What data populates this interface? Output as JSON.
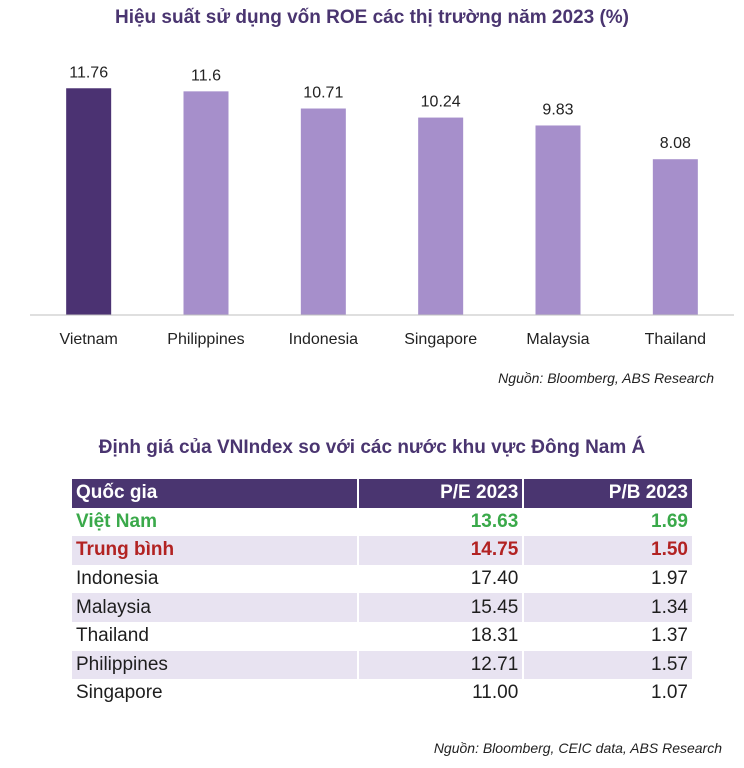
{
  "chart_data": {
    "type": "bar",
    "title": "Hiệu suất sử dụng vốn ROE các thị trường năm 2023 (%)",
    "categories": [
      "Vietnam",
      "Philippines",
      "Indonesia",
      "Singapore",
      "Malaysia",
      "Thailand"
    ],
    "values": [
      11.76,
      11.6,
      10.71,
      10.24,
      9.83,
      8.08
    ],
    "value_labels": [
      "11.76",
      "11.6",
      "10.71",
      "10.24",
      "9.83",
      "8.08"
    ],
    "ylim": [
      0,
      12.5
    ],
    "grid": false,
    "highlight_index": 0,
    "colors": {
      "highlight": "#4b3272",
      "default": "#a68fcb",
      "axis": "#bfbfbf"
    }
  },
  "chart_source": "Nguồn: Bloomberg, ABS Research",
  "table": {
    "title": "Định giá của VNIndex so với các nước khu vực Đông Nam Á",
    "headers": [
      "Quốc gia",
      "P/E 2023",
      "P/B 2023"
    ],
    "rows": [
      [
        "Việt Nam",
        "13.63",
        "1.69"
      ],
      [
        "Trung bình",
        "14.75",
        "1.50"
      ],
      [
        "Indonesia",
        "17.40",
        "1.97"
      ],
      [
        "Malaysia",
        "15.45",
        "1.34"
      ],
      [
        "Thailand",
        "18.31",
        "1.37"
      ],
      [
        "Philippines",
        "12.71",
        "1.57"
      ],
      [
        "Singapore",
        "11.00",
        "1.07"
      ]
    ],
    "source": "Nguồn: Bloomberg, CEIC data, ABS Research"
  }
}
